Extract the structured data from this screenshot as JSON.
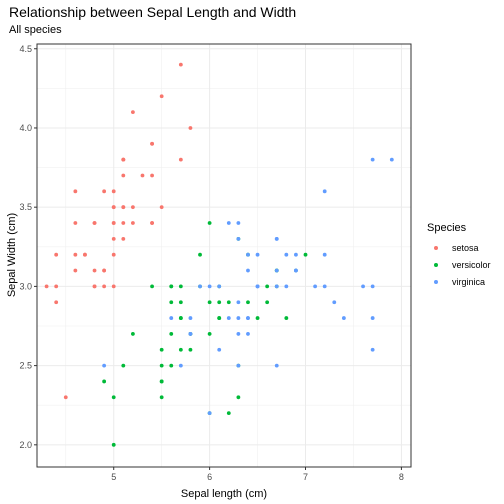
{
  "chart_data": {
    "type": "scatter",
    "title": "Relationship between Sepal Length and Width",
    "subtitle": "All species",
    "xlabel": "Sepal length (cm)",
    "ylabel": "Sepal Width (cm)",
    "xlim": [
      4.2,
      8.1
    ],
    "ylim": [
      1.86,
      4.53
    ],
    "xticks": [
      5,
      6,
      7,
      8
    ],
    "yticks": [
      2.0,
      2.5,
      3.0,
      3.5,
      4.0,
      4.5
    ],
    "ytick_labels": [
      "2.0",
      "2.5",
      "3.0",
      "3.5",
      "4.0",
      "4.5"
    ],
    "grid": true,
    "legend": {
      "title": "Species",
      "placement": "right"
    },
    "series": [
      {
        "name": "setosa",
        "color": "#F8766D",
        "points": [
          [
            5.1,
            3.5
          ],
          [
            4.9,
            3.0
          ],
          [
            4.7,
            3.2
          ],
          [
            4.6,
            3.1
          ],
          [
            5.0,
            3.6
          ],
          [
            5.4,
            3.9
          ],
          [
            4.6,
            3.4
          ],
          [
            5.0,
            3.4
          ],
          [
            4.4,
            2.9
          ],
          [
            4.9,
            3.1
          ],
          [
            5.4,
            3.7
          ],
          [
            4.8,
            3.4
          ],
          [
            4.8,
            3.0
          ],
          [
            4.3,
            3.0
          ],
          [
            5.8,
            4.0
          ],
          [
            5.7,
            4.4
          ],
          [
            5.4,
            3.9
          ],
          [
            5.1,
            3.5
          ],
          [
            5.7,
            3.8
          ],
          [
            5.1,
            3.8
          ],
          [
            5.4,
            3.4
          ],
          [
            5.1,
            3.7
          ],
          [
            4.6,
            3.6
          ],
          [
            5.1,
            3.3
          ],
          [
            4.8,
            3.4
          ],
          [
            5.0,
            3.0
          ],
          [
            5.0,
            3.4
          ],
          [
            5.2,
            3.5
          ],
          [
            5.2,
            3.4
          ],
          [
            4.7,
            3.2
          ],
          [
            4.8,
            3.1
          ],
          [
            5.4,
            3.4
          ],
          [
            5.2,
            4.1
          ],
          [
            5.5,
            4.2
          ],
          [
            4.9,
            3.1
          ],
          [
            5.0,
            3.2
          ],
          [
            5.5,
            3.5
          ],
          [
            4.9,
            3.6
          ],
          [
            4.4,
            3.0
          ],
          [
            5.1,
            3.4
          ],
          [
            5.0,
            3.5
          ],
          [
            4.5,
            2.3
          ],
          [
            4.4,
            3.2
          ],
          [
            5.0,
            3.5
          ],
          [
            5.1,
            3.8
          ],
          [
            4.8,
            3.0
          ],
          [
            5.1,
            3.8
          ],
          [
            4.6,
            3.2
          ],
          [
            5.3,
            3.7
          ],
          [
            5.0,
            3.3
          ]
        ]
      },
      {
        "name": "versicolor",
        "color": "#00BA38",
        "points": [
          [
            7.0,
            3.2
          ],
          [
            6.4,
            3.2
          ],
          [
            6.9,
            3.1
          ],
          [
            5.5,
            2.3
          ],
          [
            6.5,
            2.8
          ],
          [
            5.7,
            2.8
          ],
          [
            6.3,
            3.3
          ],
          [
            4.9,
            2.4
          ],
          [
            6.6,
            2.9
          ],
          [
            5.2,
            2.7
          ],
          [
            5.0,
            2.0
          ],
          [
            5.9,
            3.0
          ],
          [
            6.0,
            2.2
          ],
          [
            6.1,
            2.9
          ],
          [
            5.6,
            2.9
          ],
          [
            6.7,
            3.1
          ],
          [
            5.6,
            3.0
          ],
          [
            5.8,
            2.7
          ],
          [
            6.2,
            2.2
          ],
          [
            5.6,
            2.5
          ],
          [
            5.9,
            3.2
          ],
          [
            6.1,
            2.8
          ],
          [
            6.3,
            2.5
          ],
          [
            6.1,
            2.8
          ],
          [
            6.4,
            2.9
          ],
          [
            6.6,
            3.0
          ],
          [
            6.8,
            2.8
          ],
          [
            6.7,
            3.0
          ],
          [
            6.0,
            2.9
          ],
          [
            5.7,
            2.6
          ],
          [
            5.5,
            2.4
          ],
          [
            5.5,
            2.4
          ],
          [
            5.8,
            2.7
          ],
          [
            6.0,
            2.7
          ],
          [
            5.4,
            3.0
          ],
          [
            6.0,
            3.4
          ],
          [
            6.7,
            3.1
          ],
          [
            6.3,
            2.3
          ],
          [
            5.6,
            3.0
          ],
          [
            5.5,
            2.5
          ],
          [
            5.5,
            2.6
          ],
          [
            6.1,
            3.0
          ],
          [
            5.8,
            2.6
          ],
          [
            5.0,
            2.3
          ],
          [
            5.6,
            2.7
          ],
          [
            5.7,
            3.0
          ],
          [
            5.7,
            2.9
          ],
          [
            6.2,
            2.9
          ],
          [
            5.1,
            2.5
          ],
          [
            5.7,
            2.8
          ]
        ]
      },
      {
        "name": "virginica",
        "color": "#619CFF",
        "points": [
          [
            6.3,
            3.3
          ],
          [
            5.8,
            2.7
          ],
          [
            7.1,
            3.0
          ],
          [
            6.3,
            2.9
          ],
          [
            6.5,
            3.0
          ],
          [
            7.6,
            3.0
          ],
          [
            4.9,
            2.5
          ],
          [
            7.3,
            2.9
          ],
          [
            6.7,
            2.5
          ],
          [
            7.2,
            3.6
          ],
          [
            6.5,
            3.2
          ],
          [
            6.4,
            2.7
          ],
          [
            6.8,
            3.0
          ],
          [
            5.7,
            2.5
          ],
          [
            5.8,
            2.8
          ],
          [
            6.4,
            3.2
          ],
          [
            6.5,
            3.0
          ],
          [
            7.7,
            3.8
          ],
          [
            7.7,
            2.6
          ],
          [
            6.0,
            2.2
          ],
          [
            6.9,
            3.2
          ],
          [
            5.6,
            2.8
          ],
          [
            7.7,
            2.8
          ],
          [
            6.3,
            2.7
          ],
          [
            6.7,
            3.3
          ],
          [
            7.2,
            3.2
          ],
          [
            6.2,
            2.8
          ],
          [
            6.1,
            3.0
          ],
          [
            6.4,
            2.8
          ],
          [
            7.2,
            3.0
          ],
          [
            7.4,
            2.8
          ],
          [
            7.9,
            3.8
          ],
          [
            6.4,
            2.8
          ],
          [
            6.3,
            2.8
          ],
          [
            6.1,
            2.6
          ],
          [
            7.7,
            3.0
          ],
          [
            6.3,
            3.4
          ],
          [
            6.4,
            3.1
          ],
          [
            6.0,
            3.0
          ],
          [
            6.9,
            3.1
          ],
          [
            6.7,
            3.1
          ],
          [
            6.9,
            3.1
          ],
          [
            5.8,
            2.7
          ],
          [
            6.8,
            3.2
          ],
          [
            6.7,
            3.3
          ],
          [
            6.7,
            3.0
          ],
          [
            6.3,
            2.5
          ],
          [
            6.5,
            3.0
          ],
          [
            6.2,
            3.4
          ],
          [
            5.9,
            3.0
          ]
        ]
      }
    ]
  }
}
